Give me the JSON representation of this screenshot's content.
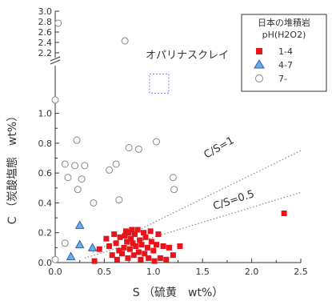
{
  "chart_data": {
    "type": "scatter",
    "xlabel": "S （硫黄　wt%）",
    "ylabel": "C （炭酸塩態　wt%）",
    "xlim": [
      0,
      2.5
    ],
    "ylim_lower": [
      0,
      1.25
    ],
    "ylim_upper": [
      2.2,
      3.0
    ],
    "x_ticks": [
      "0.0",
      "0.5",
      "1.0",
      "1.5",
      "2.0",
      "2.5"
    ],
    "y_ticks_lower": [
      "0.0",
      "0.2",
      "0.4",
      "0.6",
      "0.8",
      "1.0"
    ],
    "y_ticks_upper": [
      "2.2",
      "2.4",
      "2.6",
      "2.8",
      "3.0"
    ],
    "axis_break": true,
    "grid": false,
    "legend": {
      "placement": "top-right",
      "title_line1": "日本の堆積岩",
      "title_line2": "pH(H2O2)",
      "entries": [
        "1-4",
        "4-7",
        "7-"
      ]
    },
    "reference_lines": [
      {
        "label": "C/S=1",
        "slope": 1
      },
      {
        "label": "C/S=0.5",
        "slope": 0.5
      }
    ],
    "annotation": {
      "label": "オパリナスクレイ",
      "x": 1.05,
      "y": 1.2
    },
    "series": [
      {
        "name": "1-4",
        "marker": "square",
        "color": "#e8141a",
        "points": [
          [
            0.52,
            0.16
          ],
          [
            0.55,
            0.11
          ],
          [
            0.58,
            0.05
          ],
          [
            0.6,
            0.19
          ],
          [
            0.62,
            0.13
          ],
          [
            0.63,
            0.02
          ],
          [
            0.65,
            0.08
          ],
          [
            0.66,
            0.17
          ],
          [
            0.68,
            0.06
          ],
          [
            0.7,
            0.1
          ],
          [
            0.71,
            0.18
          ],
          [
            0.72,
            0.21
          ],
          [
            0.73,
            0.14
          ],
          [
            0.74,
            0.03
          ],
          [
            0.75,
            0.2
          ],
          [
            0.76,
            0.09
          ],
          [
            0.77,
            0.16
          ],
          [
            0.78,
            0.22
          ],
          [
            0.79,
            0.13
          ],
          [
            0.8,
            0.05
          ],
          [
            0.81,
            0.19
          ],
          [
            0.82,
            0.11
          ],
          [
            0.84,
            0.22
          ],
          [
            0.85,
            0.07
          ],
          [
            0.86,
            0.15
          ],
          [
            0.87,
            0.02
          ],
          [
            0.88,
            0.12
          ],
          [
            0.9,
            0.2
          ],
          [
            0.91,
            0.06
          ],
          [
            0.92,
            0.17
          ],
          [
            0.94,
            0.1
          ],
          [
            0.95,
            0.03
          ],
          [
            0.97,
            0.21
          ],
          [
            0.98,
            0.14
          ],
          [
            1.0,
            0.08
          ],
          [
            1.01,
            0.01
          ],
          [
            1.03,
            0.12
          ],
          [
            1.05,
            0.19
          ],
          [
            1.07,
            0.03
          ],
          [
            1.1,
            0.11
          ],
          [
            1.13,
            0.02
          ],
          [
            1.16,
            0.1
          ],
          [
            1.2,
            0.05
          ],
          [
            1.27,
            0.11
          ],
          [
            0.4,
            0.01
          ],
          [
            0.45,
            0.09
          ],
          [
            2.33,
            0.33
          ]
        ]
      },
      {
        "name": "4-7",
        "marker": "triangle",
        "color": "#6aaee8",
        "points": [
          [
            0.16,
            0.04
          ],
          [
            0.25,
            0.12
          ],
          [
            0.25,
            0.25
          ],
          [
            0.38,
            0.1
          ]
        ]
      },
      {
        "name": "7-",
        "marker": "circle",
        "color": "#888888",
        "points": [
          [
            0.0,
            1.09
          ],
          [
            0.0,
            0.02
          ],
          [
            0.03,
            2.77
          ],
          [
            0.71,
            2.43
          ],
          [
            0.1,
            0.66
          ],
          [
            0.13,
            0.57
          ],
          [
            0.2,
            0.65
          ],
          [
            0.22,
            0.82
          ],
          [
            0.23,
            0.49
          ],
          [
            0.27,
            0.56
          ],
          [
            0.3,
            0.65
          ],
          [
            0.39,
            0.4
          ],
          [
            0.55,
            0.62
          ],
          [
            0.62,
            0.66
          ],
          [
            0.65,
            0.42
          ],
          [
            0.75,
            0.77
          ],
          [
            0.85,
            0.76
          ],
          [
            1.03,
            0.81
          ],
          [
            1.2,
            0.57
          ],
          [
            1.21,
            0.49
          ],
          [
            0.1,
            0.13
          ]
        ]
      }
    ]
  }
}
